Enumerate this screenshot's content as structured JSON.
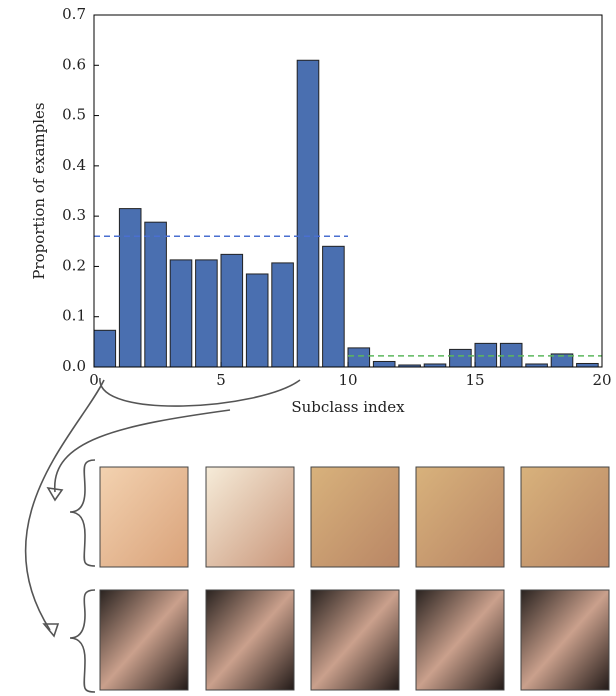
{
  "chart_data": {
    "type": "bar",
    "xlabel": "Subclass index",
    "ylabel": "Proportion of examples",
    "x": [
      0,
      1,
      2,
      3,
      4,
      5,
      6,
      7,
      8,
      9,
      10,
      11,
      12,
      13,
      14,
      15,
      16,
      17,
      18,
      19
    ],
    "values": [
      0.073,
      0.315,
      0.288,
      0.213,
      0.213,
      0.224,
      0.185,
      0.207,
      0.61,
      0.24,
      0.038,
      0.011,
      0.004,
      0.006,
      0.035,
      0.047,
      0.047,
      0.006,
      0.026,
      0.007
    ],
    "color": "#4a6fb0",
    "xlim": [
      0,
      20
    ],
    "xticks": [
      0,
      5,
      10,
      15,
      20
    ],
    "ylim": [
      0,
      0.7
    ],
    "yticks": [
      {
        "value": 0,
        "label": "0.0"
      },
      0.1,
      0.2,
      0.3,
      0.4,
      0.5,
      0.6,
      0.7
    ],
    "reference_lines": [
      {
        "value": 0.26,
        "x": [
          0,
          10
        ],
        "color": "#4a6fd0"
      },
      {
        "value": 0.022,
        "x": [
          10,
          20
        ],
        "color": "#5cb85c"
      }
    ]
  }
}
